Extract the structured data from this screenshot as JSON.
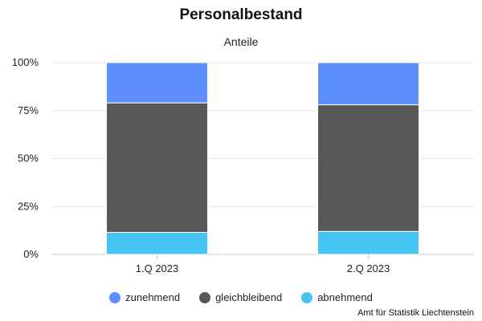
{
  "chart_data": {
    "type": "bar",
    "stacked": true,
    "title": "Personalbestand",
    "subtitle": "Anteile",
    "categories": [
      "1.Q 2023",
      "2.Q 2023"
    ],
    "series": [
      {
        "name": "abnehmend",
        "color": "#45c4f1",
        "values": [
          11.5,
          12
        ]
      },
      {
        "name": "gleichbleibend",
        "color": "#58585a",
        "values": [
          67.5,
          66
        ]
      },
      {
        "name": "zunehmend",
        "color": "#5f8ffe",
        "values": [
          21,
          22
        ]
      }
    ],
    "legend_order": [
      "zunehmend",
      "gleichbleibend",
      "abnehmend"
    ],
    "ylim": [
      0,
      100
    ],
    "yticks": [
      "0%",
      "25%",
      "50%",
      "75%",
      "100%"
    ],
    "ytick_values": [
      0,
      25,
      50,
      75,
      100
    ],
    "grid": true,
    "legend_position": "bottom",
    "credit": "Amt für Statistik Liechtenstein"
  }
}
